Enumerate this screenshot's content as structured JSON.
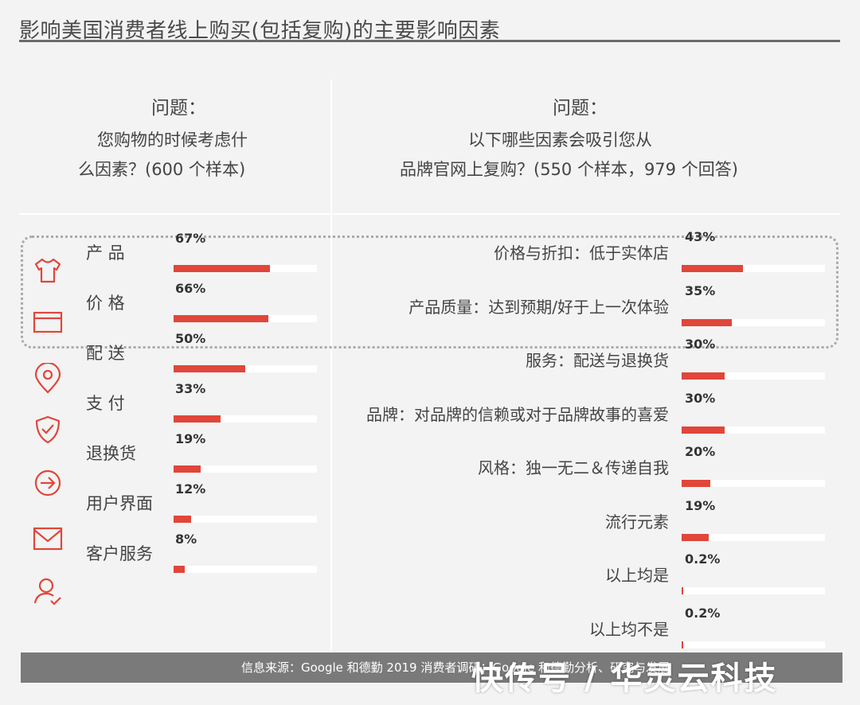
{
  "title": "影响美国消费者线上购买(包括复购)的主要影响因素",
  "left_question": {
    "heading": "问题：",
    "line1": "您购物的时候考虑什",
    "line2": "么因素？(600 个样本)"
  },
  "right_question": {
    "heading": "问题：",
    "line1": "以下哪些因素会吸引您从",
    "line2": "品牌官网上复购？(550 个样本，979 个回答)"
  },
  "icons": [
    "shirt-icon",
    "credit-card-icon",
    "location-pin-icon",
    "shield-check-icon",
    "return-arrow-icon",
    "mail-icon",
    "user-check-icon"
  ],
  "accent_color": "#e0463a",
  "chart_data": [
    {
      "type": "bar",
      "orientation": "horizontal",
      "categories": [
        "产 品",
        "价 格",
        "配 送",
        "支 付",
        "退换货",
        "用户界面",
        "客户服务"
      ],
      "labels": [
        "67%",
        "66%",
        "50%",
        "33%",
        "19%",
        "12%",
        "8%"
      ],
      "values": [
        67,
        66,
        50,
        33,
        19,
        12,
        8
      ],
      "xlim": [
        0,
        100
      ]
    },
    {
      "type": "bar",
      "orientation": "horizontal",
      "categories": [
        "价格与折扣：低于实体店",
        "产品质量：达到预期/好于上一次体验",
        "服务：配送与退换货",
        "品牌：对品牌的信赖或对于品牌故事的喜爱",
        "风格：独一无二＆传递自我",
        "流行元素",
        "以上均是",
        "以上均不是"
      ],
      "labels": [
        "43%",
        "35%",
        "30%",
        "30%",
        "20%",
        "19%",
        "0.2%",
        "0.2%"
      ],
      "values": [
        43,
        35,
        30,
        30,
        20,
        19,
        0.2,
        0.2
      ],
      "xlim": [
        0,
        100
      ]
    }
  ],
  "footer": "信息来源：Google 和德勤 2019 消费者调研：Google 和德勤分析、研究与发展",
  "watermark": "快传号 / 华灵云科技"
}
